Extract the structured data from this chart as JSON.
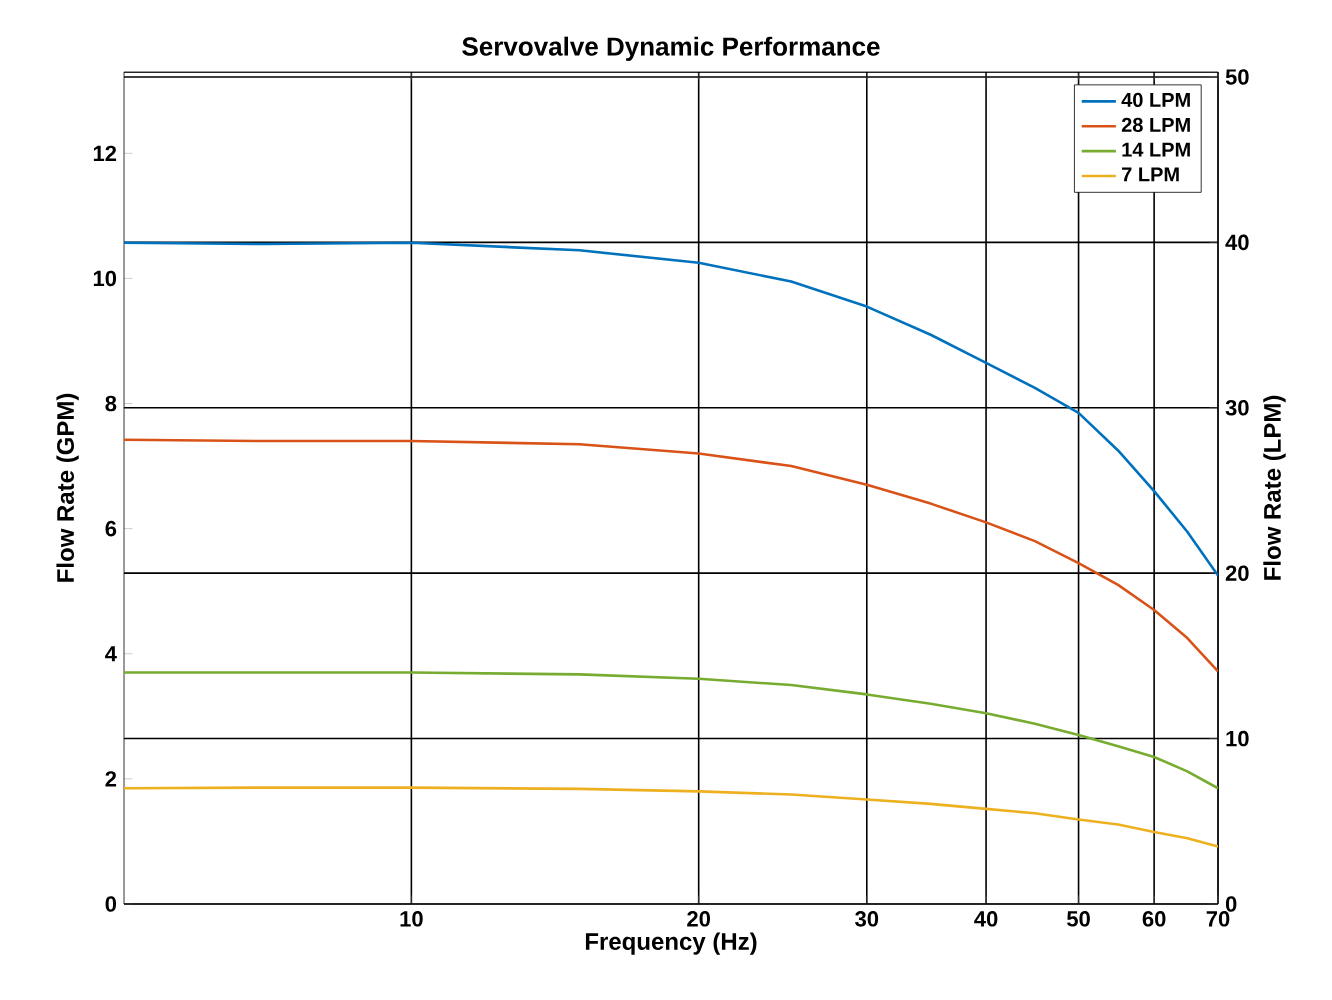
{
  "chart_data": {
    "type": "line",
    "title": "Servovalve Dynamic Performance",
    "xlabel": "Frequency (Hz)",
    "ylabel": "Flow Rate (GPM)",
    "y2label": "Flow Rate (LPM)",
    "x": [
      5,
      7,
      10,
      15,
      20,
      25,
      30,
      35,
      40,
      45,
      50,
      55,
      60,
      65,
      70
    ],
    "series": [
      {
        "name": "40 LPM",
        "color": "#0072bd",
        "values": [
          10.57,
          10.55,
          10.57,
          10.45,
          10.25,
          9.95,
          9.55,
          9.1,
          8.65,
          8.25,
          7.85,
          7.25,
          6.6,
          5.95,
          5.25
        ]
      },
      {
        "name": "28 LPM",
        "color": "#d95319",
        "values": [
          7.42,
          7.4,
          7.4,
          7.35,
          7.2,
          7.0,
          6.7,
          6.4,
          6.1,
          5.8,
          5.45,
          5.1,
          4.7,
          4.25,
          3.72
        ]
      },
      {
        "name": "14 LPM",
        "color": "#77ac30",
        "values": [
          3.7,
          3.7,
          3.7,
          3.67,
          3.6,
          3.5,
          3.35,
          3.2,
          3.05,
          2.88,
          2.7,
          2.52,
          2.35,
          2.12,
          1.85
        ]
      },
      {
        "name": "7 LPM",
        "color": "#edb120",
        "values": [
          1.85,
          1.86,
          1.86,
          1.84,
          1.8,
          1.75,
          1.67,
          1.6,
          1.52,
          1.45,
          1.35,
          1.27,
          1.15,
          1.05,
          0.92
        ]
      }
    ],
    "log": "x",
    "xlim": [
      5,
      70
    ],
    "xticks": [
      10,
      20,
      30,
      40,
      50,
      60,
      70
    ],
    "ylim": [
      0,
      13.3
    ],
    "yticks": [
      0,
      2,
      4,
      6,
      8,
      10,
      12
    ],
    "y2lim": [
      0,
      50.3
    ],
    "y2ticks": [
      0,
      10,
      20,
      30,
      40,
      50
    ],
    "grid": true,
    "legend": "top right",
    "marker": "none",
    "line_style": "solid"
  }
}
